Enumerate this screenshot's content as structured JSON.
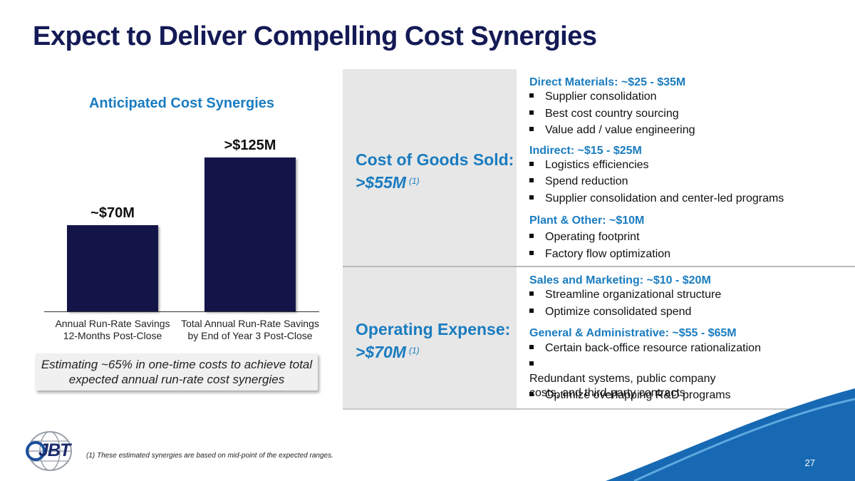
{
  "title": "Expect to Deliver Compelling Cost Synergies",
  "chart_data": {
    "type": "bar",
    "title": "Anticipated Cost Synergies",
    "categories": [
      "Annual Run-Rate Savings 12-Months Post-Close",
      "Total Annual Run-Rate Savings by End of Year 3 Post-Close"
    ],
    "category_lines": [
      [
        "Annual Run-Rate Savings",
        "12-Months Post-Close"
      ],
      [
        "Total Annual Run-Rate Savings",
        "by End of Year 3 Post-Close"
      ]
    ],
    "values": [
      70,
      125
    ],
    "data_labels": [
      "~$70M",
      ">$125M"
    ],
    "ylim": [
      0,
      125
    ],
    "xlabel": "",
    "ylabel": "",
    "color": "#131549"
  },
  "callout": "Estimating ~65% in one-time costs to achieve total expected annual run-rate cost synergies",
  "rows": [
    {
      "title": "Cost of Goods Sold:",
      "value": ">$55M",
      "note": "(1)",
      "sections": [
        {
          "heading": "Direct Materials: ~$25 - $35M",
          "bullets": [
            "Supplier consolidation",
            "Best cost country sourcing",
            "Value add / value engineering"
          ]
        },
        {
          "heading": "Indirect: ~$15 - $25M",
          "bullets": [
            "Logistics efficiencies",
            "Spend reduction",
            "Supplier consolidation and center-led programs"
          ]
        },
        {
          "heading": "Plant & Other: ~$10M",
          "bullets": [
            "Operating footprint",
            "Factory flow optimization"
          ]
        }
      ]
    },
    {
      "title": "Operating Expense:",
      "value": ">$70M",
      "note": "(1)",
      "sections": [
        {
          "heading": "Sales and Marketing: ~$10 - $20M",
          "bullets": [
            "Streamline organizational structure",
            "Optimize consolidated spend"
          ]
        },
        {
          "heading": "General & Administrative: ~$55 - $65M",
          "bullets": [
            "Certain back-office resource rationalization",
            "Redundant systems, public company costs, and third-party contracts",
            "Optimize overlapping R&D programs"
          ]
        }
      ]
    }
  ],
  "footnote": "(1) These estimated synergies are based on mid-point of the expected ranges.",
  "logo_text": "JBT",
  "page_number": "27",
  "colors": {
    "navy": "#141a55",
    "accent_blue": "#1a7cc0",
    "wave_blue": "#1769b3"
  }
}
